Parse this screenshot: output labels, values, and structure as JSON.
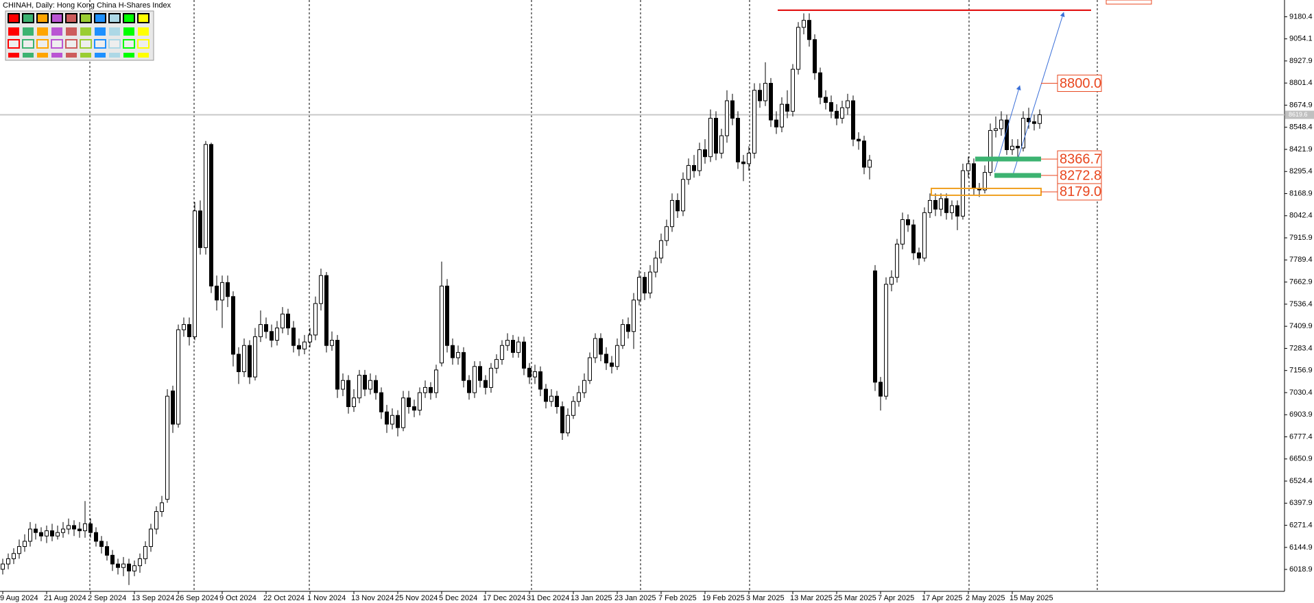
{
  "chart_data": {
    "type": "candlestick",
    "title": "CHINAH, Daily:  Hong Kong China H-Shares Index",
    "categories": [
      "9 Aug 2024",
      null,
      null,
      null,
      null,
      null,
      null,
      null,
      "21 Aug 2024",
      null,
      null,
      null,
      null,
      null,
      null,
      null,
      "2 Sep 2024",
      null,
      null,
      null,
      null,
      null,
      null,
      null,
      "13 Sep 2024",
      null,
      null,
      null,
      null,
      null,
      null,
      null,
      "26 Sep 2024",
      null,
      null,
      null,
      null,
      null,
      null,
      null,
      "9 Oct 2024",
      null,
      null,
      null,
      null,
      null,
      null,
      null,
      "22 Oct 2024",
      null,
      null,
      null,
      null,
      null,
      null,
      null,
      "1 Nov 2024",
      null,
      null,
      null,
      null,
      null,
      null,
      null,
      "13 Nov 2024",
      null,
      null,
      null,
      null,
      null,
      null,
      null,
      "25 Nov 2024",
      null,
      null,
      null,
      null,
      null,
      null,
      null,
      "5 Dec 2024",
      null,
      null,
      null,
      null,
      null,
      null,
      null,
      "17 Dec 2024",
      null,
      null,
      null,
      null,
      null,
      null,
      null,
      "31 Dec 2024",
      null,
      null,
      null,
      null,
      null,
      null,
      null,
      "13 Jan 2025",
      null,
      null,
      null,
      null,
      null,
      null,
      null,
      "23 Jan 2025",
      null,
      null,
      null,
      null,
      null,
      null,
      null,
      "7 Feb 2025",
      null,
      null,
      null,
      null,
      null,
      null,
      null,
      "19 Feb 2025",
      null,
      null,
      null,
      null,
      null,
      null,
      null,
      "3 Mar 2025",
      null,
      null,
      null,
      null,
      null,
      null,
      null,
      "13 Mar 2025",
      null,
      null,
      null,
      null,
      null,
      null,
      null,
      "25 Mar 2025",
      null,
      null,
      null,
      null,
      null,
      null,
      null,
      "7 Apr 2025",
      null,
      null,
      null,
      null,
      null,
      null,
      null,
      "17 Apr 2025",
      null,
      null,
      null,
      null,
      null,
      null,
      null,
      "2 May 2025",
      null,
      null,
      null,
      null,
      null,
      null,
      null,
      "15 May 2025",
      null,
      null,
      null,
      null,
      null
    ],
    "open": [
      6020,
      6050,
      6080,
      6110,
      6150,
      6180,
      6250,
      6230,
      6210,
      6240,
      6210,
      6230,
      6250,
      6270,
      6250,
      6240,
      6280,
      6230,
      6180,
      6150,
      6100,
      6050,
      6030,
      6050,
      6010,
      6040,
      6080,
      6150,
      6250,
      6350,
      6420,
      7040,
      6850,
      7390,
      7420,
      7350,
      8070,
      7860,
      8450,
      7640,
      7560,
      7660,
      7580,
      7250,
      7150,
      7300,
      7120,
      7350,
      7420,
      7380,
      7330,
      7400,
      7480,
      7400,
      7300,
      7280,
      7320,
      7360,
      7540,
      7700,
      7300,
      7330,
      7050,
      7100,
      6950,
      7000,
      7130,
      7050,
      7100,
      7030,
      6920,
      6850,
      6900,
      6830,
      7000,
      6950,
      6930,
      7030,
      7060,
      7030,
      7200,
      7640,
      7300,
      7230,
      7260,
      7100,
      7030,
      7180,
      7100,
      7060,
      7170,
      7220,
      7300,
      7330,
      7260,
      7320,
      7170,
      7120,
      7150,
      7050,
      6980,
      7010,
      6950,
      6800,
      6900,
      6980,
      7030,
      7100,
      7230,
      7340,
      7250,
      7200,
      7180,
      7300,
      7420,
      7380,
      7560,
      7690,
      7600,
      7720,
      7800,
      7900,
      7980,
      8130,
      8070,
      8250,
      8330,
      8300,
      8420,
      8380,
      8600,
      8400,
      8500,
      8700,
      8600,
      8350,
      8340,
      8400,
      8760,
      8700,
      8800,
      8590,
      8550,
      8680,
      8640,
      8880,
      9120,
      9160,
      9050,
      8860,
      8720,
      8690,
      8640,
      8600,
      8660,
      8700,
      8480,
      8470,
      8320,
      7727,
      7090,
      7010,
      7650,
      7690,
      7880,
      8020,
      7990,
      7830,
      7800,
      8060,
      8130,
      8080,
      8140,
      8060,
      8100,
      8040,
      8300,
      8340,
      8200,
      8190,
      8290,
      8530,
      8540,
      8590,
      8420,
      8440,
      8430,
      8600,
      8580,
      8570
    ],
    "high": [
      6080,
      6110,
      6140,
      6190,
      6220,
      6290,
      6280,
      6260,
      6270,
      6280,
      6270,
      6290,
      6310,
      6300,
      6290,
      6410,
      6310,
      6260,
      6210,
      6180,
      6130,
      6080,
      6090,
      6080,
      6070,
      6110,
      6180,
      6280,
      6380,
      6440,
      7050,
      7070,
      7420,
      7460,
      7460,
      8120,
      8130,
      8470,
      8460,
      7700,
      7700,
      7700,
      7610,
      7290,
      7340,
      7330,
      7400,
      7500,
      7460,
      7420,
      7440,
      7520,
      7510,
      7440,
      7340,
      7360,
      7400,
      7580,
      7740,
      7720,
      7380,
      7360,
      7140,
      7130,
      7050,
      7160,
      7160,
      7140,
      7130,
      7060,
      6960,
      6940,
      6930,
      7040,
      7040,
      6990,
      7060,
      7100,
      7090,
      7190,
      7780,
      7680,
      7340,
      7300,
      7290,
      7130,
      7210,
      7210,
      7130,
      7200,
      7250,
      7330,
      7370,
      7360,
      7350,
      7350,
      7200,
      7190,
      7180,
      7080,
      7050,
      7040,
      6980,
      6940,
      7010,
      7070,
      7140,
      7260,
      7370,
      7370,
      7290,
      7240,
      7340,
      7450,
      7460,
      7600,
      7730,
      7720,
      7760,
      7840,
      7940,
      8020,
      8170,
      8170,
      8290,
      8370,
      8390,
      8460,
      8480,
      8650,
      8640,
      8540,
      8760,
      8740,
      8640,
      8390,
      8440,
      8800,
      8800,
      8920,
      8830,
      8640,
      8720,
      8760,
      8910,
      9150,
      9200,
      9200,
      9080,
      8890,
      8760,
      8730,
      8680,
      8700,
      8740,
      8730,
      8520,
      8500,
      8390,
      7760,
      7120,
      7690,
      7730,
      7910,
      8060,
      8050,
      8020,
      7860,
      8090,
      8170,
      8170,
      8170,
      8170,
      8130,
      8130,
      8340,
      8380,
      8370,
      8230,
      8330,
      8570,
      8610,
      8640,
      8620,
      8480,
      8480,
      8640,
      8660,
      8620,
      8650
    ],
    "low": [
      5990,
      6020,
      6050,
      6080,
      6120,
      6150,
      6190,
      6180,
      6170,
      6180,
      6190,
      6200,
      6220,
      6210,
      6200,
      6200,
      6200,
      6150,
      6110,
      6070,
      6010,
      5990,
      5980,
      5930,
      5980,
      6000,
      6050,
      6120,
      6220,
      6320,
      6400,
      6800,
      6830,
      7350,
      7300,
      7330,
      7820,
      7820,
      7600,
      7500,
      7400,
      7520,
      7180,
      7080,
      7120,
      7080,
      7100,
      7320,
      7340,
      7290,
      7300,
      7370,
      7360,
      7260,
      7240,
      7250,
      7290,
      7330,
      7500,
      7260,
      7270,
      7000,
      7010,
      6910,
      6920,
      6970,
      7010,
      7020,
      6990,
      6880,
      6800,
      6820,
      6780,
      6810,
      6910,
      6890,
      6900,
      7000,
      6990,
      7000,
      7180,
      7260,
      7190,
      7190,
      7060,
      6990,
      7000,
      7060,
      7020,
      7030,
      7140,
      7190,
      7270,
      7230,
      7230,
      7130,
      7080,
      7080,
      7010,
      6940,
      6950,
      6910,
      6760,
      6780,
      6880,
      6950,
      7000,
      7080,
      7200,
      7210,
      7160,
      7140,
      7160,
      7280,
      7340,
      7280,
      7530,
      7560,
      7570,
      7690,
      7770,
      7870,
      7950,
      8030,
      8040,
      8220,
      8260,
      8270,
      8340,
      8350,
      8360,
      8370,
      8460,
      8560,
      8310,
      8240,
      8300,
      8370,
      8660,
      8670,
      8550,
      8510,
      8520,
      8600,
      8610,
      8850,
      9080,
      9010,
      8820,
      8680,
      8650,
      8600,
      8560,
      8570,
      8620,
      8440,
      8420,
      8280,
      8250,
      7040,
      6928,
      6990,
      7610,
      7660,
      7850,
      7950,
      7790,
      7760,
      7780,
      8030,
      8040,
      8040,
      8020,
      8020,
      7960,
      8020,
      8260,
      8160,
      8150,
      8170,
      8270,
      8490,
      8500,
      8390,
      8390,
      8380,
      8410,
      8540,
      8530,
      8540
    ],
    "close": [
      6050,
      6080,
      6110,
      6150,
      6180,
      6250,
      6230,
      6210,
      6240,
      6210,
      6230,
      6250,
      6270,
      6250,
      6240,
      6280,
      6230,
      6180,
      6150,
      6100,
      6050,
      6030,
      6050,
      6010,
      6040,
      6080,
      6150,
      6250,
      6350,
      6400,
      7010,
      6850,
      7390,
      7420,
      7350,
      8070,
      7860,
      8450,
      7640,
      7560,
      7660,
      7580,
      7250,
      7150,
      7300,
      7120,
      7350,
      7420,
      7380,
      7330,
      7400,
      7480,
      7400,
      7300,
      7280,
      7320,
      7360,
      7540,
      7700,
      7300,
      7330,
      7050,
      7100,
      6950,
      7000,
      7130,
      7050,
      7100,
      7030,
      6920,
      6850,
      6900,
      6830,
      7000,
      6950,
      6930,
      7030,
      7060,
      7030,
      7160,
      7640,
      7300,
      7230,
      7260,
      7100,
      7030,
      7180,
      7100,
      7060,
      7170,
      7220,
      7300,
      7330,
      7260,
      7320,
      7170,
      7120,
      7150,
      7050,
      6980,
      7010,
      6950,
      6800,
      6900,
      6980,
      7030,
      7100,
      7230,
      7340,
      7250,
      7200,
      7180,
      7300,
      7420,
      7380,
      7560,
      7690,
      7600,
      7720,
      7800,
      7900,
      7980,
      8130,
      8070,
      8250,
      8330,
      8300,
      8420,
      8380,
      8600,
      8400,
      8500,
      8700,
      8600,
      8350,
      8340,
      8400,
      8760,
      8700,
      8800,
      8590,
      8550,
      8680,
      8640,
      8880,
      9120,
      9160,
      9050,
      8860,
      8720,
      8690,
      8640,
      8600,
      8660,
      8700,
      8480,
      8470,
      8320,
      8360,
      7090,
      7010,
      7650,
      7690,
      7880,
      8020,
      7990,
      7830,
      7800,
      8060,
      8130,
      8080,
      8140,
      8060,
      8100,
      8040,
      8300,
      8340,
      8200,
      8190,
      8290,
      8530,
      8540,
      8590,
      8420,
      8440,
      8430,
      8600,
      8580,
      8570,
      8619.6
    ],
    "ylim": [
      5893.5,
      9276.4
    ],
    "yticks": [
      9180.4,
      9054.1,
      8927.9,
      8801.4,
      8674.9,
      8548.4,
      8421.9,
      8295.4,
      8168.9,
      8042.4,
      7915.9,
      7789.4,
      7662.9,
      7536.4,
      7409.9,
      7283.4,
      7156.9,
      7030.4,
      6903.9,
      6777.4,
      6650.9,
      6524.4,
      6397.9,
      6271.4,
      6144.9,
      6018.9
    ],
    "current_price": 8619.6,
    "resistance_line": 9218,
    "price_labels": [
      {
        "value": 8800,
        "label": "8800.0"
      },
      8366.7,
      8272.8,
      {
        "value": 8179,
        "label": "8179.0"
      }
    ]
  }
}
